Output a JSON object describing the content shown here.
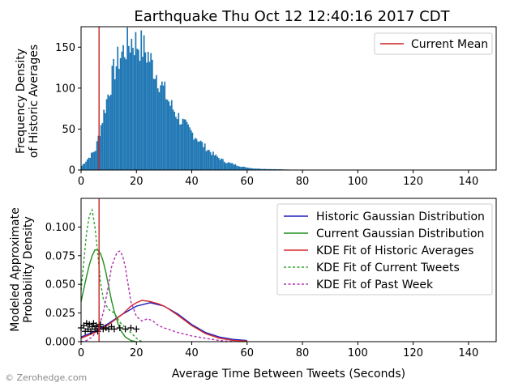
{
  "watermark": "© Zerohedge.com",
  "colors": {
    "hist_bar": "#1f77b4",
    "current_mean": "#cc2222",
    "historic_gauss": "#1f1fbf",
    "current_gauss": "#1f8f1f",
    "kde_hist": "#d62728",
    "kde_current": "#2ca02c",
    "kde_week": "#b02fb0"
  },
  "chart_data": [
    {
      "type": "bar",
      "title": "Earthquake Thu Oct 12 12:40:16 2017 CDT",
      "ylabel_lines": [
        "Frequency Density",
        "of Historic Averages"
      ],
      "xlim": [
        0,
        150
      ],
      "ylim": [
        0,
        175
      ],
      "xticks": [
        "0",
        "20",
        "40",
        "60",
        "80",
        "100",
        "120",
        "140"
      ],
      "xtick_values": [
        0,
        20,
        40,
        60,
        80,
        100,
        120,
        140
      ],
      "yticks": [
        "0",
        "50",
        "100",
        "150"
      ],
      "ytick_values": [
        0,
        50,
        100,
        150
      ],
      "grid": false,
      "legend": {
        "position": "top-right",
        "entries": [
          {
            "label": "Current Mean",
            "color": "#cc2222"
          }
        ]
      },
      "current_mean_x": 6.5,
      "histogram": {
        "bin_width": 0.5,
        "x": [
          0,
          5,
          8,
          10,
          12,
          14,
          16,
          18,
          20,
          22,
          24,
          26,
          28,
          30,
          32,
          34,
          36,
          38,
          40,
          42,
          44,
          46,
          48,
          50,
          52,
          54,
          56,
          58,
          60,
          62,
          65,
          70,
          75,
          80,
          90,
          100,
          110,
          120,
          130,
          145
        ],
        "density": [
          5,
          25,
          70,
          100,
          125,
          140,
          150,
          158,
          155,
          150,
          140,
          125,
          110,
          95,
          80,
          70,
          60,
          52,
          45,
          38,
          30,
          24,
          18,
          14,
          10,
          8,
          6,
          4,
          3,
          2,
          1.5,
          1,
          0.6,
          0.4,
          0.3,
          0.2,
          0.1,
          0.05,
          0.03,
          0
        ]
      }
    },
    {
      "type": "line",
      "xlabel": "Average Time Between Tweets (Seconds)",
      "ylabel_lines": [
        "Modeled Approximate",
        "Probability Density"
      ],
      "xlim": [
        0,
        150
      ],
      "ylim": [
        0,
        0.125
      ],
      "xticks": [
        "0",
        "20",
        "40",
        "60",
        "80",
        "100",
        "120",
        "140"
      ],
      "xtick_values": [
        0,
        20,
        40,
        60,
        80,
        100,
        120,
        140
      ],
      "yticks": [
        "0.000",
        "0.025",
        "0.050",
        "0.075",
        "0.100"
      ],
      "ytick_values": [
        0,
        0.025,
        0.05,
        0.075,
        0.1
      ],
      "grid": false,
      "legend": {
        "position": "top-right"
      },
      "current_mean_x": 6.5,
      "series": [
        {
          "name": "Historic Gaussian Distribution",
          "style": "solid",
          "color": "#1f1fbf",
          "x": [
            0,
            5,
            10,
            15,
            20,
            25,
            30,
            35,
            40,
            45,
            50,
            55,
            60
          ],
          "y": [
            0.004,
            0.009,
            0.016,
            0.024,
            0.031,
            0.034,
            0.031,
            0.024,
            0.015,
            0.008,
            0.004,
            0.002,
            0.001
          ]
        },
        {
          "name": "Current Gaussian Distribution",
          "style": "solid",
          "color": "#1f8f1f",
          "x": [
            0,
            1,
            2,
            3,
            4,
            5,
            6,
            7,
            8,
            9,
            10,
            11,
            12,
            14,
            16,
            18,
            20
          ],
          "y": [
            0.035,
            0.046,
            0.057,
            0.067,
            0.075,
            0.08,
            0.08,
            0.077,
            0.07,
            0.06,
            0.048,
            0.036,
            0.026,
            0.011,
            0.004,
            0.001,
            0
          ]
        },
        {
          "name": "KDE Fit of Historic Averages",
          "style": "solid",
          "color": "#d62728",
          "x": [
            0,
            5,
            10,
            15,
            18,
            20,
            22,
            25,
            28,
            30,
            32,
            35,
            40,
            45,
            50,
            55,
            60
          ],
          "y": [
            0.003,
            0.008,
            0.015,
            0.024,
            0.031,
            0.034,
            0.036,
            0.035,
            0.033,
            0.031,
            0.028,
            0.023,
            0.014,
            0.007,
            0.003,
            0.001,
            0.0005
          ]
        },
        {
          "name": "KDE Fit of Current Tweets",
          "style": "dotted",
          "color": "#2ca02c",
          "x": [
            0,
            1,
            2,
            3,
            4,
            5,
            6,
            7,
            8,
            9,
            10,
            12,
            14,
            16,
            18,
            20,
            22
          ],
          "y": [
            0.045,
            0.07,
            0.095,
            0.11,
            0.115,
            0.1,
            0.078,
            0.052,
            0.038,
            0.032,
            0.028,
            0.025,
            0.017,
            0.012,
            0.008,
            0.003,
            0
          ]
        },
        {
          "name": "KDE Fit of Past Week",
          "style": "dotted",
          "color": "#b02fb0",
          "x": [
            0,
            2,
            4,
            6,
            8,
            10,
            11,
            12,
            13,
            14,
            15,
            16,
            17,
            18,
            20,
            22,
            24,
            26,
            28,
            30,
            35,
            40,
            45,
            50,
            55
          ],
          "y": [
            0.0,
            0.001,
            0.004,
            0.01,
            0.025,
            0.05,
            0.065,
            0.072,
            0.078,
            0.079,
            0.075,
            0.065,
            0.05,
            0.035,
            0.022,
            0.018,
            0.02,
            0.018,
            0.014,
            0.012,
            0.008,
            0.005,
            0.003,
            0.001,
            0
          ]
        }
      ],
      "markers": {
        "symbol": "+",
        "x": [
          0,
          1,
          1.5,
          2,
          2.5,
          3,
          3.5,
          4,
          4.5,
          5,
          5.5,
          6,
          6.5,
          7,
          8,
          9,
          10,
          11,
          12,
          14,
          16,
          18,
          20
        ],
        "y": [
          0.012,
          0.014,
          0.009,
          0.016,
          0.011,
          0.015,
          0.009,
          0.013,
          0.016,
          0.011,
          0.014,
          0.009,
          0.013,
          0.015,
          0.011,
          0.012,
          0.011,
          0.013,
          0.011,
          0.012,
          0.011,
          0.012,
          0.011
        ]
      }
    }
  ]
}
